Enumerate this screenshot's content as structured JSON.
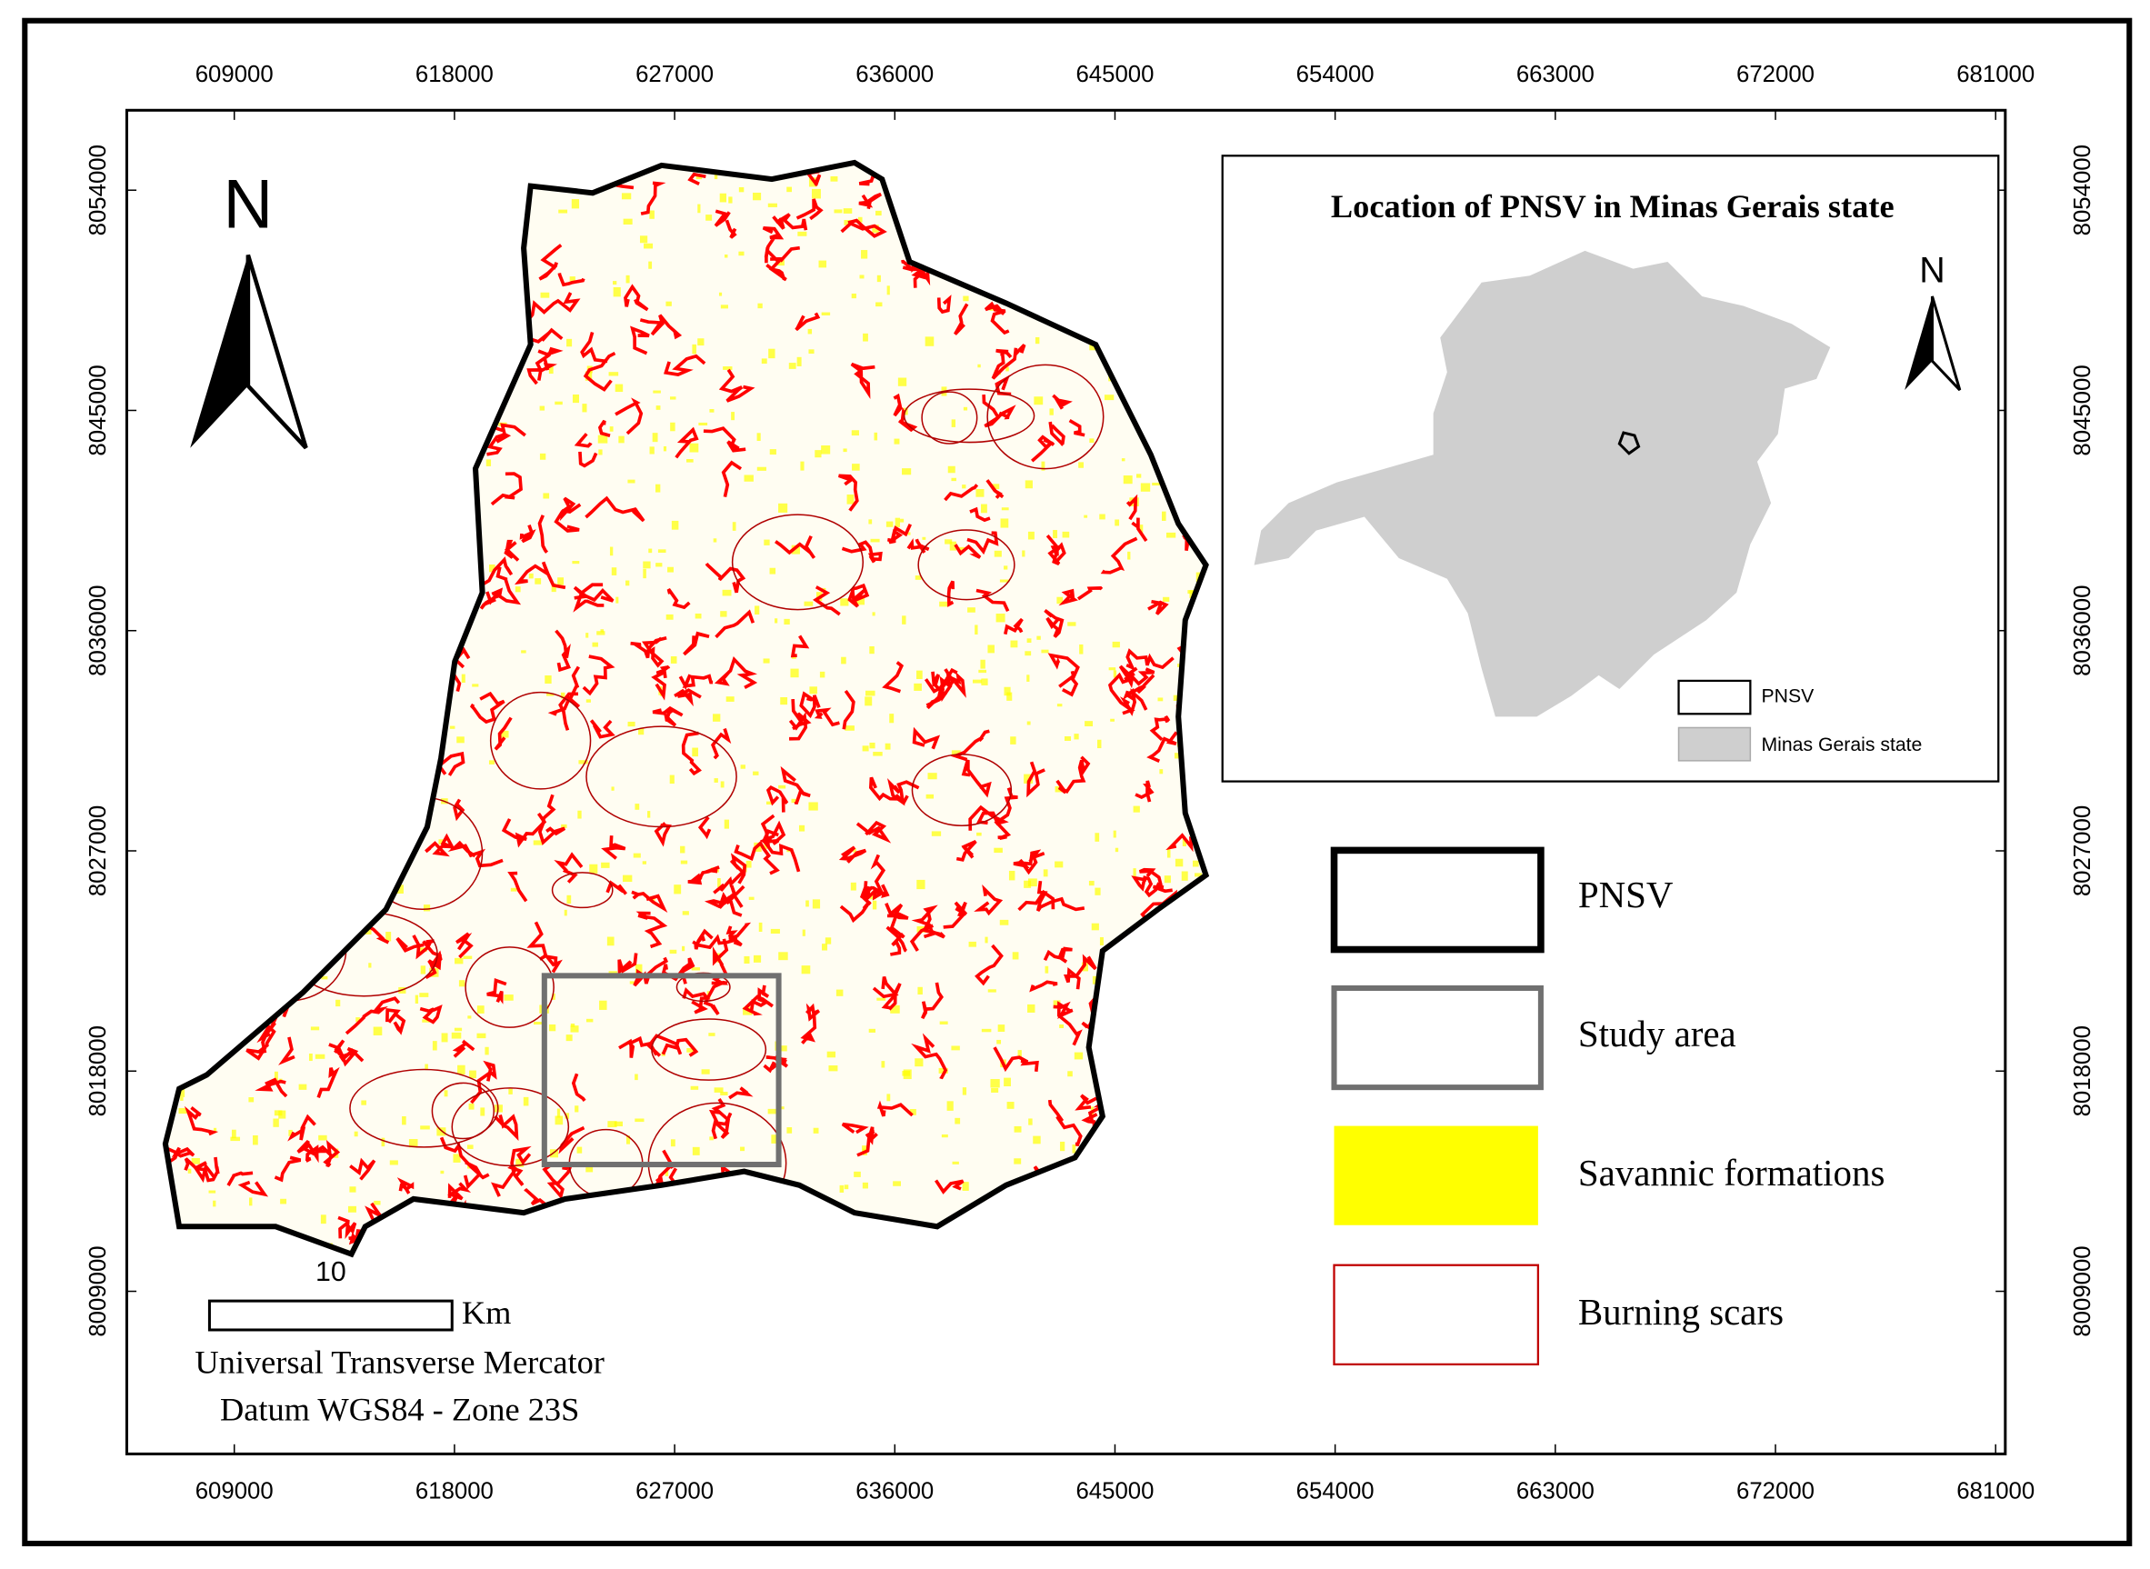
{
  "map": {
    "north": "N",
    "x_ticks": [
      609000,
      618000,
      627000,
      636000,
      645000,
      654000,
      663000,
      672000,
      681000
    ],
    "y_ticks": [
      8054000,
      8045000,
      8036000,
      8027000,
      8018000,
      8009000
    ]
  },
  "inset": {
    "title": "Location of PNSV in Minas Gerais state",
    "north": "N",
    "legend": [
      "PNSV",
      "Minas Gerais state"
    ]
  },
  "legend": [
    "PNSV",
    "Study area",
    "Savannic formations",
    "Burning scars"
  ],
  "scale_bar": {
    "distance": 10,
    "unit": "Km"
  },
  "projection": [
    "Universal Transverse Mercator",
    "Datum WGS84 - Zone 23S"
  ]
}
